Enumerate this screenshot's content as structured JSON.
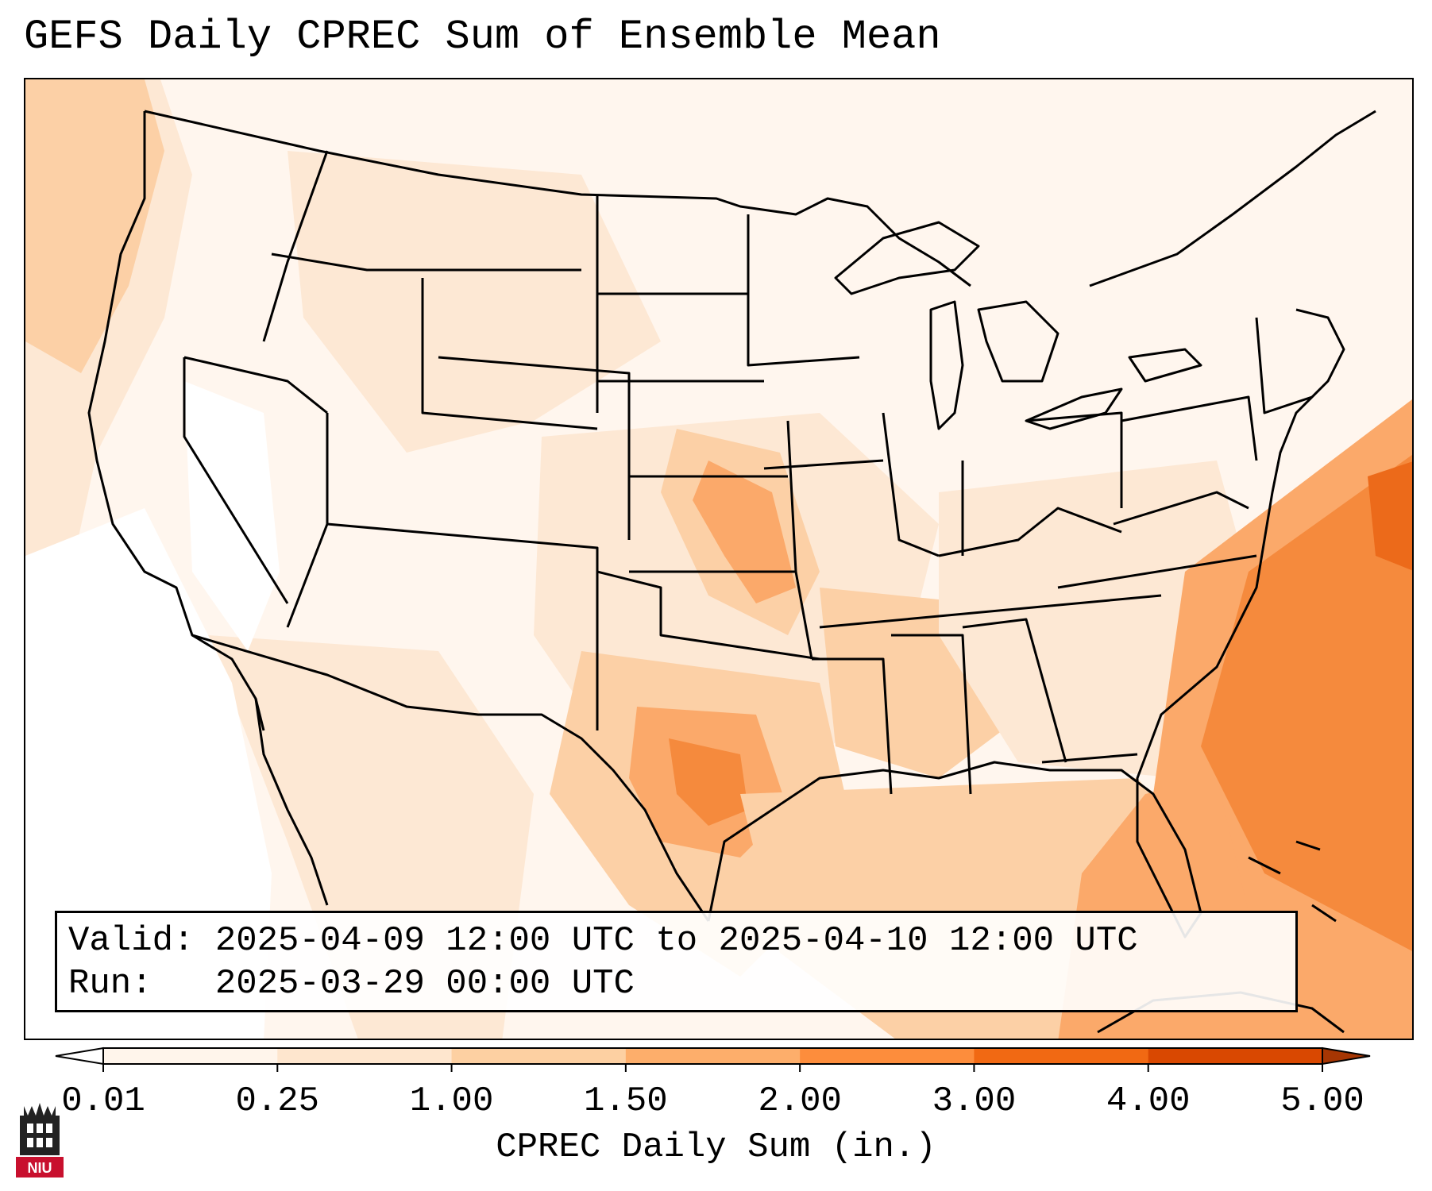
{
  "title": "GEFS Daily CPREC Sum of Ensemble Mean",
  "info": {
    "valid_label": "Valid:",
    "valid_value": "2025-04-09 12:00 UTC to 2025-04-10 12:00 UTC",
    "run_label": "Run:",
    "run_value": "2025-03-29 00:00 UTC"
  },
  "colorbar": {
    "label": "CPREC Daily Sum (in.)",
    "ticks": [
      "0.01",
      "0.25",
      "1.00",
      "1.50",
      "2.00",
      "3.00",
      "4.00",
      "5.00"
    ],
    "colors": [
      "#fff5eb",
      "#fee6ce",
      "#fdd0a2",
      "#fdae6b",
      "#fd8d3c",
      "#f16913",
      "#d94801",
      "#a63603"
    ],
    "under_color": "#ffffff"
  },
  "map_colors": {
    "background": "#fff6ee",
    "light": "#fde8d4",
    "medium": "#fcd0a6",
    "strong": "#fba96a",
    "heavy": "#f58a3d",
    "peak": "#ec6a1a",
    "border": "#000000"
  },
  "logo": {
    "text": "NIU",
    "background": "#c8102e"
  }
}
